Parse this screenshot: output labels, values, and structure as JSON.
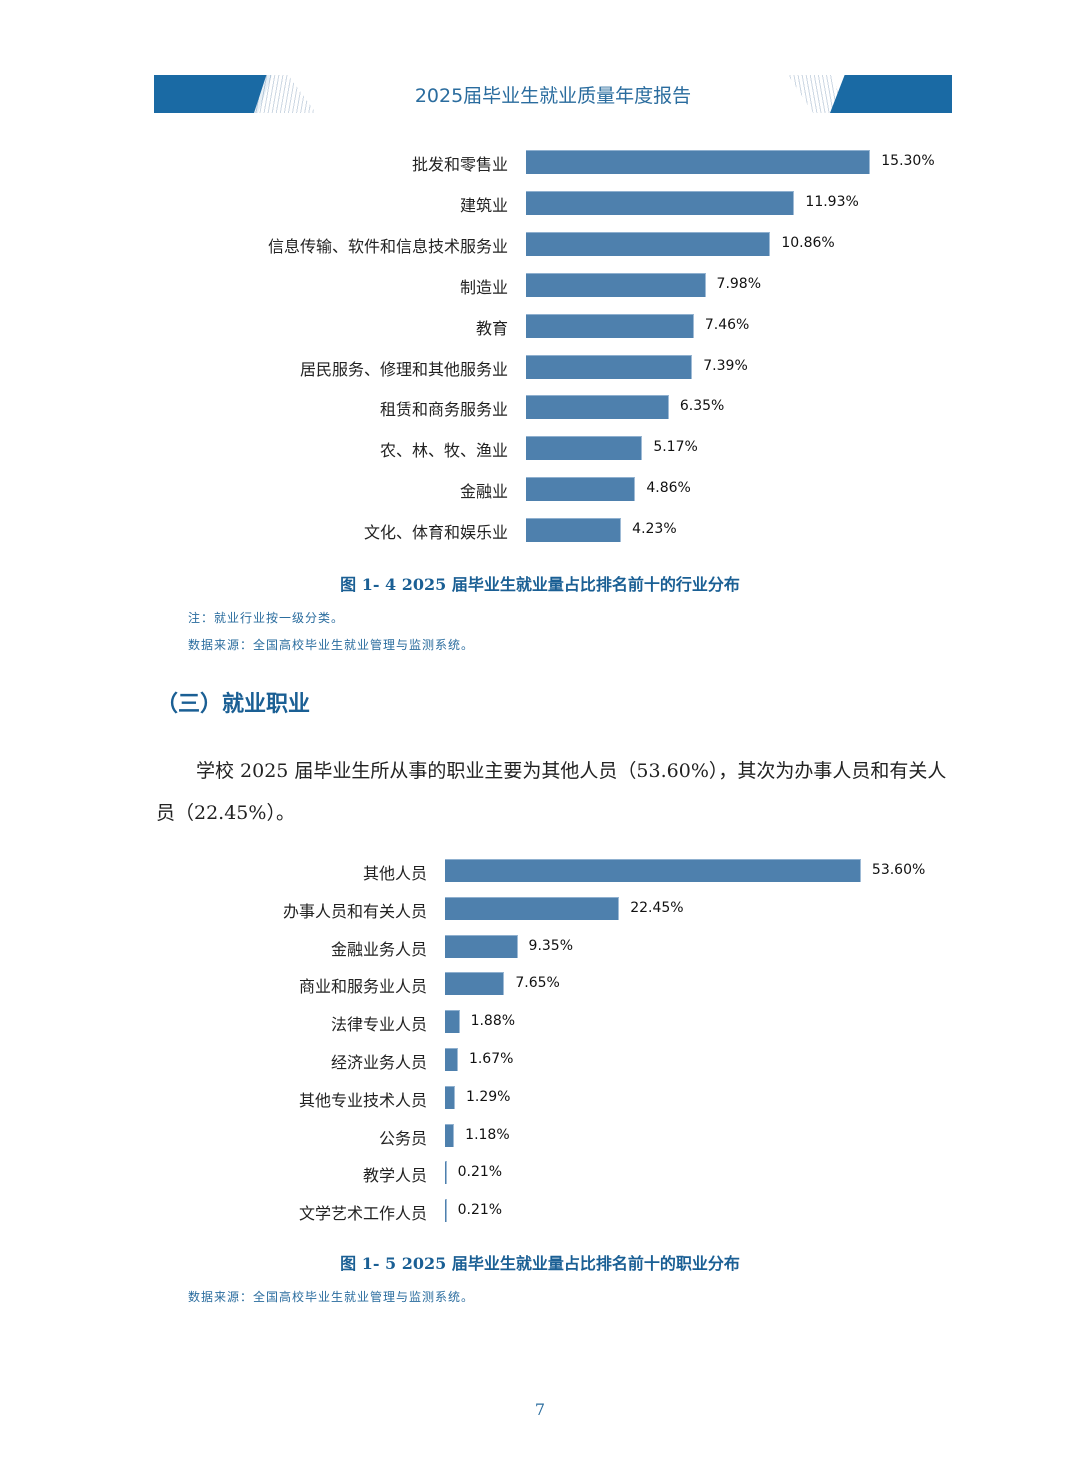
{
  "header": {
    "title": "2025届毕业生就业质量年度报告",
    "accent_color": "#1a6aa4"
  },
  "chart_data": [
    {
      "type": "bar",
      "orientation": "horizontal",
      "title": "图 1- 4  2025 届毕业生就业量占比排名前十的行业分布",
      "categories": [
        "批发和零售业",
        "建筑业",
        "信息传输、软件和信息技术服务业",
        "制造业",
        "教育",
        "居民服务、修理和其他服务业",
        "租赁和商务服务业",
        "农、林、牧、渔业",
        "金融业",
        "文化、体育和娱乐业"
      ],
      "values": [
        15.3,
        11.93,
        10.86,
        7.98,
        7.46,
        7.39,
        6.35,
        5.17,
        4.86,
        4.23
      ],
      "labels": [
        "15.30%",
        "11.93%",
        "10.86%",
        "7.98%",
        "7.46%",
        "7.39%",
        "6.35%",
        "5.17%",
        "4.86%",
        "4.23%"
      ],
      "unit": "%",
      "xlabel": "",
      "ylabel": "",
      "grid": false,
      "bar_color": "#4e80ad"
    },
    {
      "type": "bar",
      "orientation": "horizontal",
      "title": "图 1- 5  2025 届毕业生就业量占比排名前十的职业分布",
      "categories": [
        "其他人员",
        "办事人员和有关人员",
        "金融业务人员",
        "商业和服务业人员",
        "法律专业人员",
        "经济业务人员",
        "其他专业技术人员",
        "公务员",
        "教学人员",
        "文学艺术工作人员"
      ],
      "values": [
        53.6,
        22.45,
        9.35,
        7.65,
        1.88,
        1.67,
        1.29,
        1.18,
        0.21,
        0.21
      ],
      "labels": [
        "53.60%",
        "22.45%",
        "9.35%",
        "7.65%",
        "1.88%",
        "1.67%",
        "1.29%",
        "1.18%",
        "0.21%",
        "0.21%"
      ],
      "unit": "%",
      "xlabel": "",
      "ylabel": "",
      "grid": false,
      "bar_color": "#4e80ad"
    }
  ],
  "figure4": {
    "caption": "图 1- 4  2025 届毕业生就业量占比排名前十的行业分布",
    "note": "注：就业行业按一级分类。",
    "source": "数据来源：全国高校毕业生就业管理与监测系统。"
  },
  "section": {
    "title": "（三）就业职业",
    "paragraph": "学校 2025 届毕业生所从事的职业主要为其他人员（53.60%），其次为办事人员和有关人员（22.45%）。"
  },
  "figure5": {
    "caption": "图 1- 5  2025 届毕业生就业量占比排名前十的职业分布",
    "source": "数据来源：全国高校毕业生就业管理与监测系统。"
  },
  "page_number": "7"
}
